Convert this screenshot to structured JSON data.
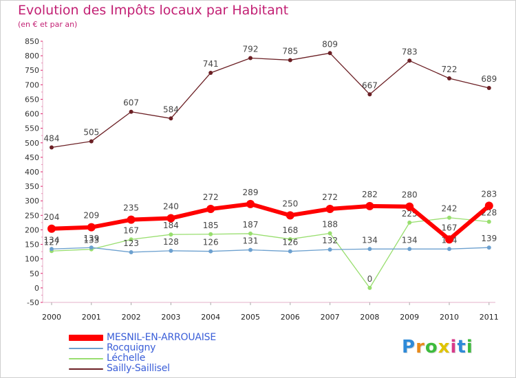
{
  "header": {
    "title": "Evolution des Impôts locaux par Habitant",
    "subtitle": "(en € et par an)"
  },
  "logo": {
    "text": "Proxiti",
    "colors": [
      "#2e8ad8",
      "#e88a1a",
      "#3dbb3d",
      "#e0c400",
      "#d83a8a",
      "#2e8ad8",
      "#3dbb3d"
    ]
  },
  "chart_data": {
    "type": "line",
    "title": "Evolution des Impôts locaux par Habitant",
    "subtitle": "(en € et par an)",
    "xlabel": "",
    "ylabel": "",
    "ylim": [
      -50,
      850
    ],
    "ytick_step": 50,
    "grid": false,
    "legend_position": "bottom-left",
    "x": [
      "2000",
      "2001",
      "2002",
      "2003",
      "2004",
      "2005",
      "2006",
      "2007",
      "2008",
      "2009",
      "2010",
      "2011"
    ],
    "series": [
      {
        "name": "Sailly-Saillisel",
        "color": "#6b1f24",
        "values": [
          484,
          505,
          607,
          584,
          741,
          792,
          785,
          809,
          667,
          783,
          722,
          689
        ],
        "labels": [
          "484",
          "505",
          "607",
          "584",
          "741",
          "792",
          "785",
          "809",
          "667",
          "783",
          "722",
          "689"
        ]
      },
      {
        "name": "Léchelle",
        "color": "#98de6e",
        "values": [
          127,
          133,
          167,
          184,
          185,
          187,
          168,
          188,
          0,
          225,
          242,
          228
        ],
        "labels": [
          "127",
          "133",
          "167",
          "184",
          "185",
          "187",
          "168",
          "188",
          "0",
          "225",
          "242",
          "228"
        ]
      },
      {
        "name": "Rocquigny",
        "color": "#6ca0cf",
        "values": [
          134,
          139,
          123,
          128,
          126,
          131,
          126,
          132,
          134,
          134,
          134,
          139
        ],
        "labels": [
          "134",
          "139",
          "123",
          "128",
          "126",
          "131",
          "126",
          "132",
          "134",
          "134",
          "134",
          "139"
        ]
      },
      {
        "name": "MESNIL-EN-ARROUAISE",
        "color": "#ff0000",
        "values": [
          204,
          209,
          235,
          240,
          272,
          289,
          250,
          272,
          282,
          280,
          167,
          283
        ],
        "labels": [
          "204",
          "209",
          "235",
          "240",
          "272",
          "289",
          "250",
          "272",
          "282",
          "280",
          "167",
          "283"
        ]
      }
    ],
    "legend": [
      "MESNIL-EN-ARROUAISE",
      "Rocquigny",
      "Léchelle",
      "Sailly-Saillisel"
    ]
  }
}
